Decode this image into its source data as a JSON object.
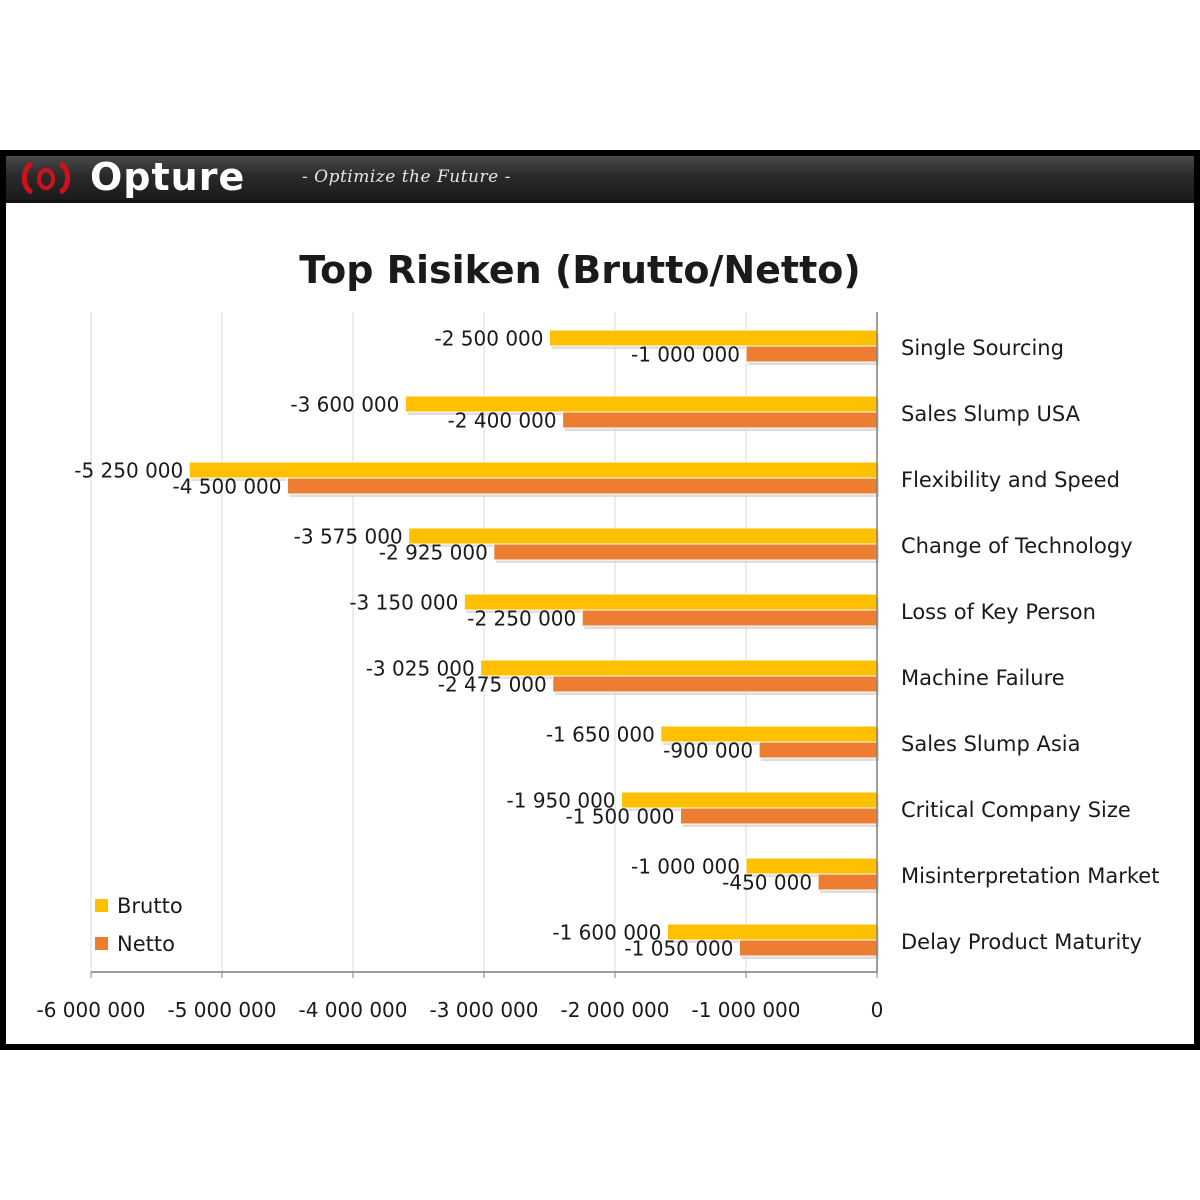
{
  "header": {
    "brand": "Opture",
    "tagline": "- Optimize the Future -"
  },
  "chart_data": {
    "type": "bar",
    "orientation": "horizontal",
    "title": "Top Risiken (Brutto/Netto)",
    "categories": [
      "Single Sourcing",
      "Sales Slump USA",
      "Flexibility and Speed",
      "Change of Technology",
      "Loss of Key Person",
      "Machine Failure",
      "Sales Slump Asia",
      "Critical Company Size",
      "Misinterpretation Market",
      "Delay Product Maturity"
    ],
    "series": [
      {
        "name": "Brutto",
        "color": "#FFC000",
        "values": [
          -2500000,
          -3600000,
          -5250000,
          -3575000,
          -3150000,
          -3025000,
          -1650000,
          -1950000,
          -1000000,
          -1600000
        ],
        "labels": [
          "-2 500 000",
          "-3 600 000",
          "-5 250 000",
          "-3 575 000",
          "-3 150 000",
          "-3 025 000",
          "-1 650 000",
          "-1 950 000",
          "-1 000 000",
          "-1 600 000"
        ]
      },
      {
        "name": "Netto",
        "color": "#ED7D31",
        "values": [
          -1000000,
          -2400000,
          -4500000,
          -2925000,
          -2250000,
          -2475000,
          -900000,
          -1500000,
          -450000,
          -1050000
        ],
        "labels": [
          "-1 000 000",
          "-2 400 000",
          "-4 500 000",
          "-2 925 000",
          "-2 250 000",
          "-2 475 000",
          "-900 000",
          "-1 500 000",
          "-450 000",
          "-1 050 000"
        ]
      }
    ],
    "xlim": [
      -6000000,
      0
    ],
    "xticks": [
      -6000000,
      -5000000,
      -4000000,
      -3000000,
      -2000000,
      -1000000,
      0
    ],
    "xtick_labels": [
      "-6 000 000",
      "-5 000 000",
      "-4 000 000",
      "-3 000 000",
      "-2 000 000",
      "-1 000 000",
      "0"
    ],
    "grid": true,
    "legend_position": "bottom-left",
    "data_labels": true
  }
}
